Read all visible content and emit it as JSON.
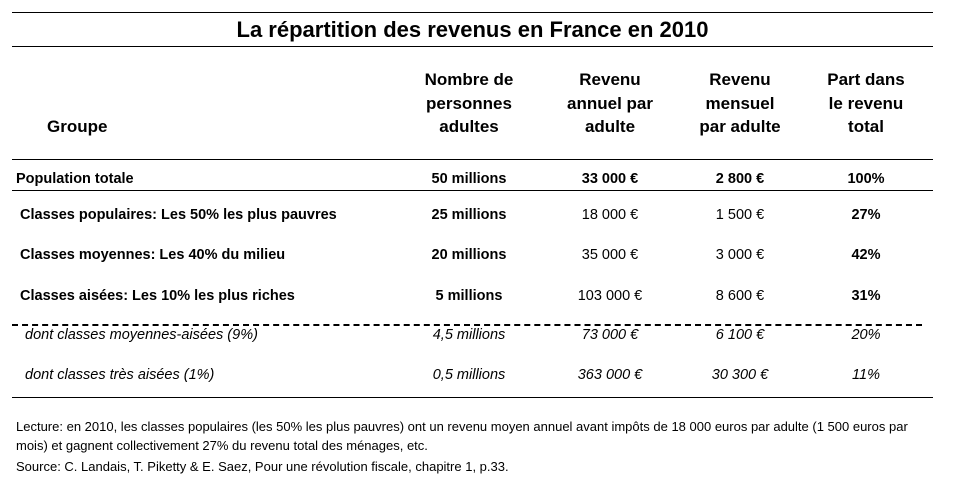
{
  "title": "La répartition des revenus en France en 2010",
  "table": {
    "header": [
      [
        "Groupe"
      ],
      [
        "Nombre de",
        "personnes",
        "adultes"
      ],
      [
        "Revenu",
        "annuel par",
        "adulte"
      ],
      [
        "Revenu",
        "mensuel",
        "par adulte"
      ],
      [
        "Part dans",
        "le revenu",
        "total"
      ]
    ],
    "rows": [
      [
        "Population totale",
        "50 millions",
        "33 000 €",
        "2 800 €",
        "100%"
      ],
      [
        "Classes populaires: Les 50% les plus pauvres",
        "25 millions",
        "18 000 €",
        "1 500 €",
        "27%"
      ],
      [
        "Classes moyennes: Les 40% du milieu",
        "20 millions",
        "35 000 €",
        "3 000 €",
        "42%"
      ],
      [
        "Classes aisées: Les 10% les plus riches",
        "5 millions",
        "103 000 €",
        "8 600 €",
        "31%"
      ],
      [
        "dont classes moyennes-aisées (9%)",
        "4,5 millions",
        "73 000 €",
        "6 100 €",
        "20%"
      ],
      [
        "dont classes très aisées (1%)",
        "0,5 millions",
        "363 000 €",
        "30 300 €",
        "11%"
      ]
    ]
  },
  "notes": [
    "Lecture: en 2010, les classes populaires (les 50% les plus pauvres) ont un revenu moyen annuel avant impôts de 18 000 euros par adulte (1 500 euros par mois) et gagnent collectivement 27% du revenu total des ménages, etc.",
    "Source: C. Landais, T. Piketty & E. Saez, Pour une révolution fiscale, chapitre 1, p.33."
  ]
}
